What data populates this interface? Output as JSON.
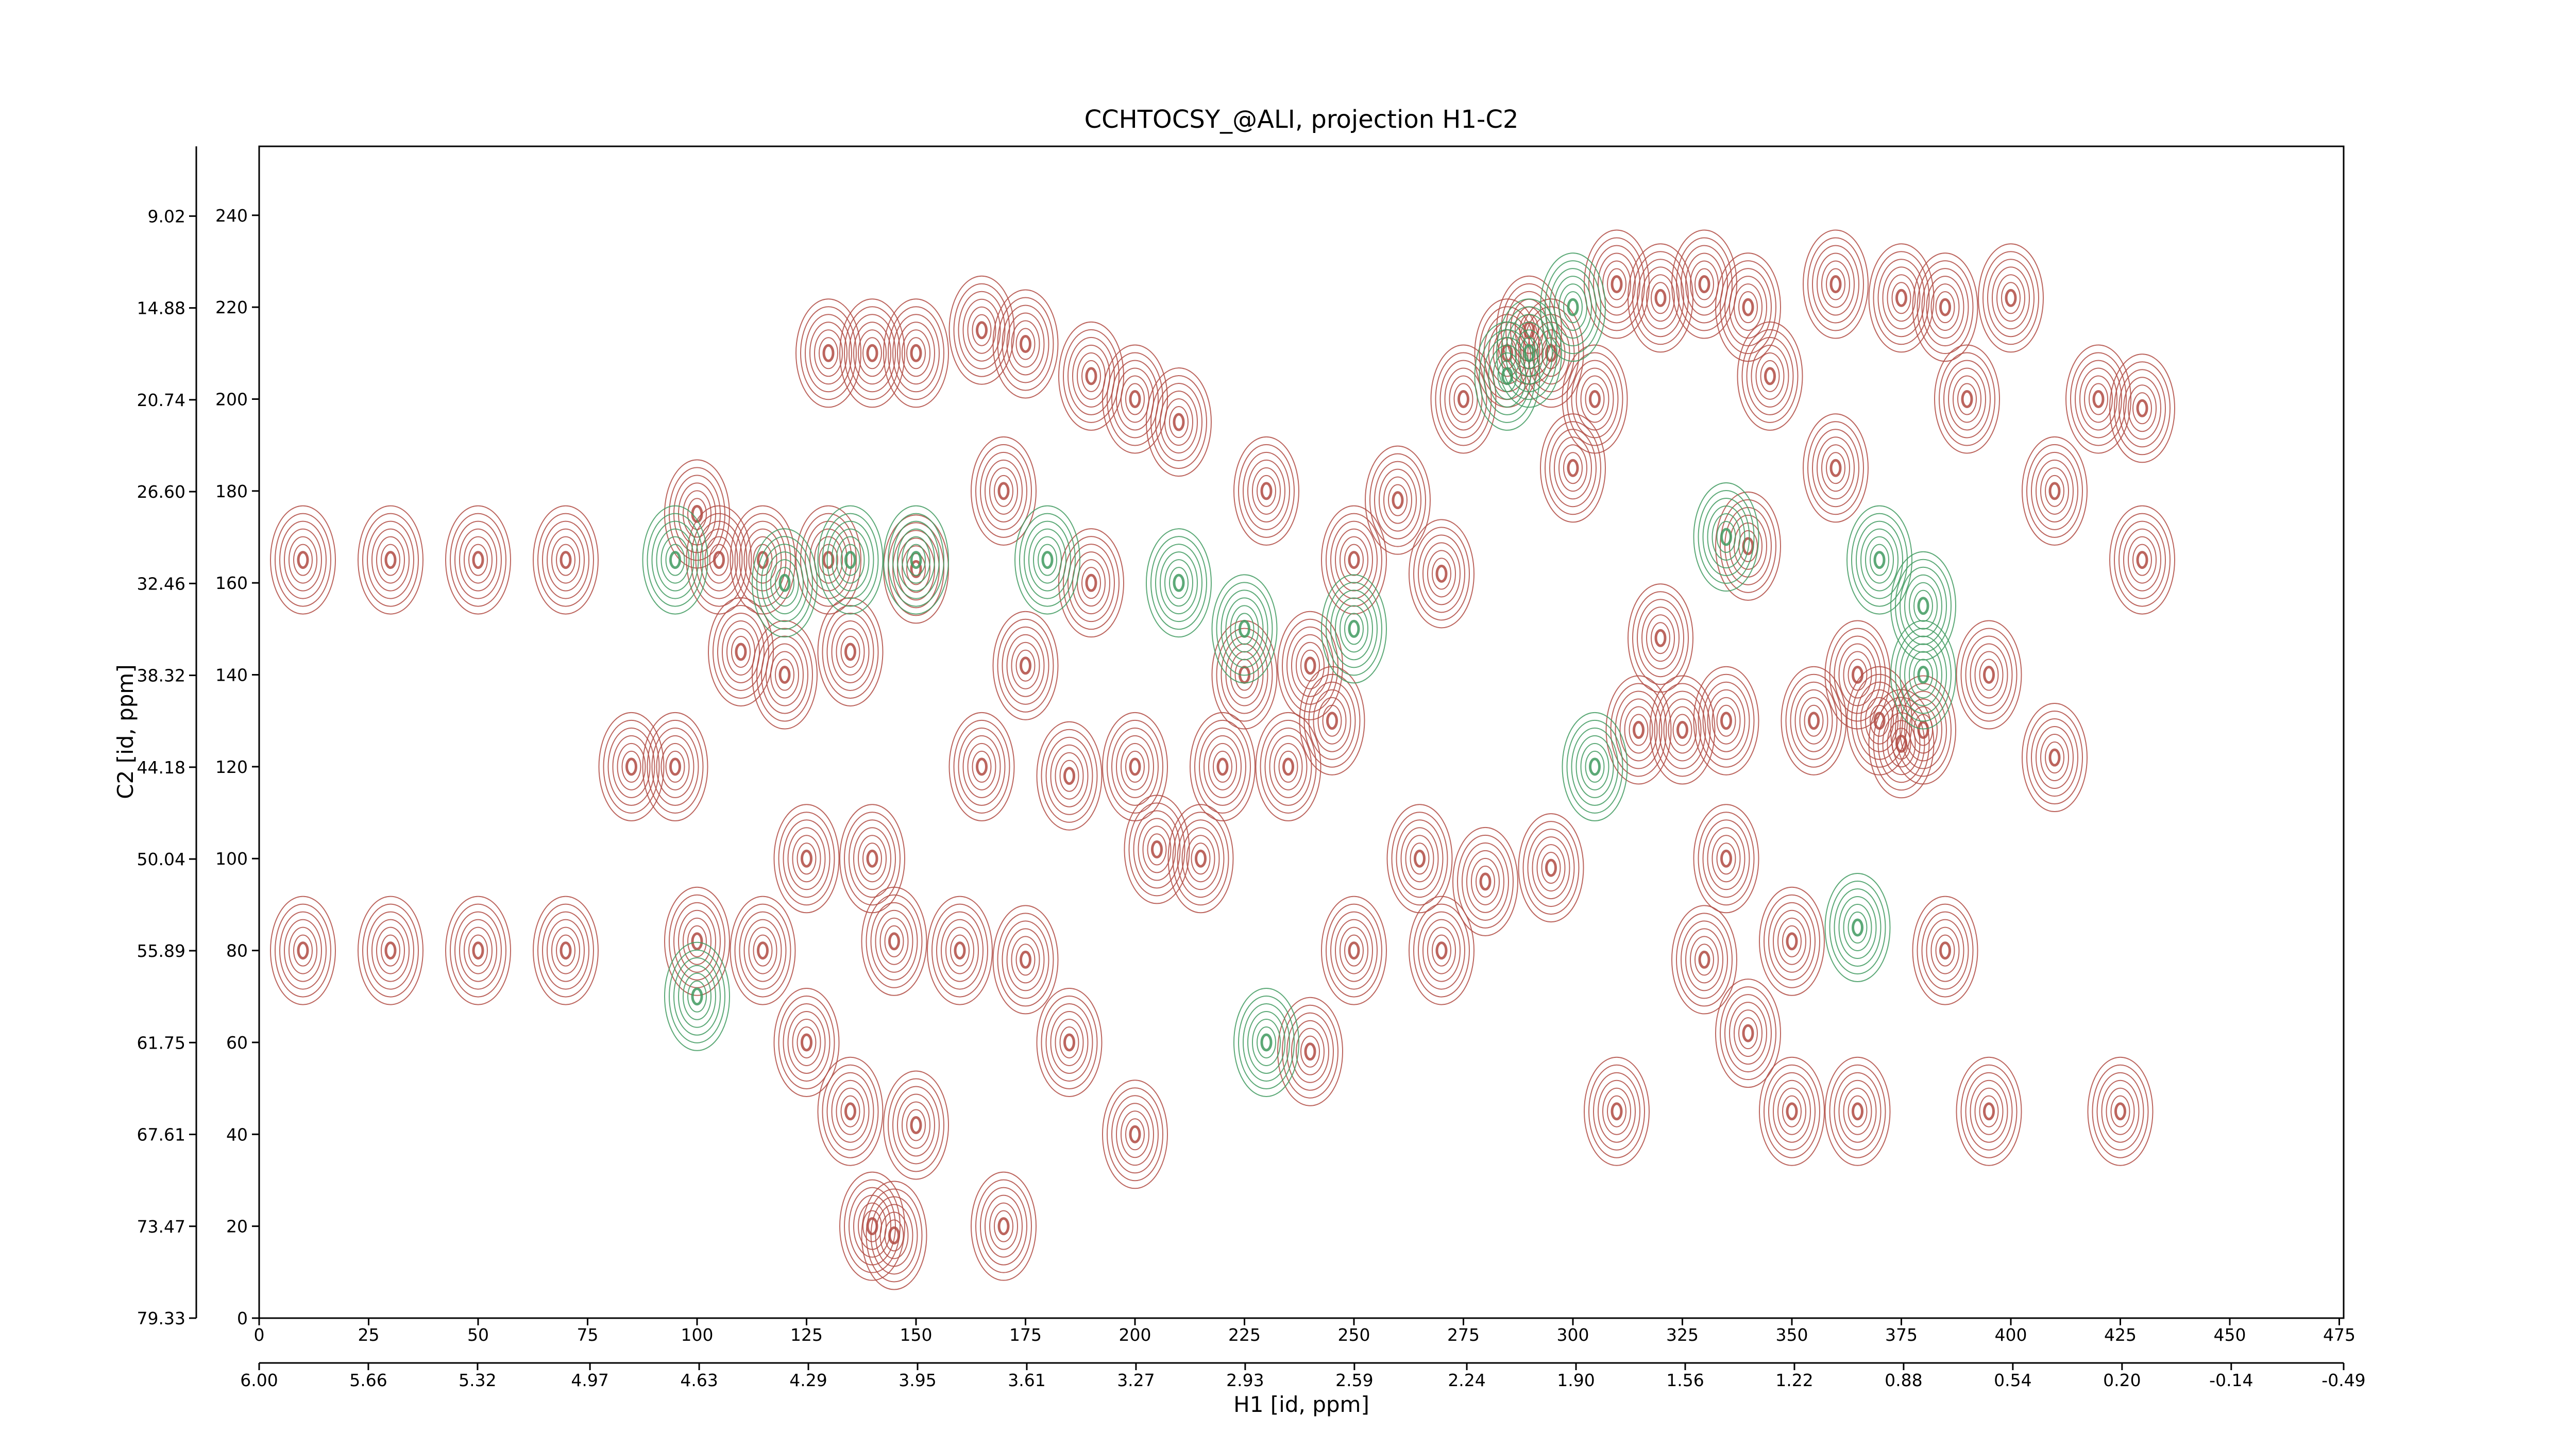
{
  "chart_data": {
    "type": "contour",
    "title": "CCHTOCSY_@ALI, projection H1-C2",
    "xlabel": "H1 [id, ppm]",
    "ylabel": "C2 [id, ppm]",
    "xlim": [
      0,
      476
    ],
    "ylim": [
      0,
      255
    ],
    "xticks": [
      0,
      25,
      50,
      75,
      100,
      125,
      150,
      175,
      200,
      225,
      250,
      275,
      300,
      325,
      350,
      375,
      400,
      425,
      450,
      475
    ],
    "yticks": [
      0,
      20,
      40,
      60,
      80,
      100,
      120,
      140,
      160,
      180,
      200,
      220,
      240
    ],
    "x2lim": [
      6,
      -0.49
    ],
    "x2ticks": [
      {
        "value": 6,
        "label": "6.00"
      },
      5.66,
      5.32,
      4.97,
      4.63,
      4.29,
      3.95,
      3.61,
      3.27,
      2.93,
      2.59,
      2.24,
      {
        "value": 1.9,
        "label": "1.90"
      },
      1.56,
      1.22,
      0.88,
      0.54,
      {
        "value": 0.2,
        "label": "0.20"
      },
      -0.14,
      -0.49
    ],
    "y2lim": [
      79.33,
      4.57
    ],
    "y2ticks": [
      9.02,
      14.88,
      20.74,
      {
        "value": 26.6,
        "label": "26.60"
      },
      32.46,
      38.32,
      44.18,
      50.04,
      55.89,
      61.75,
      67.61,
      73.47,
      79.33
    ],
    "peaks": [
      {
        "color": "#b04a42",
        "x": [
          130,
          140,
          150,
          165,
          175,
          285,
          290,
          295,
          310,
          320,
          330,
          340,
          360,
          375,
          385,
          400,
          305,
          345,
          390,
          190,
          200,
          210,
          275,
          420,
          430,
          100,
          170,
          230,
          260,
          300,
          360,
          410,
          105,
          115,
          130,
          150,
          190,
          250,
          270,
          340,
          430,
          110,
          120,
          135,
          175,
          225,
          240,
          320,
          365,
          395,
          245,
          335,
          355,
          370,
          380,
          85,
          95,
          165,
          185,
          200,
          220,
          235,
          315,
          325,
          375,
          410,
          125,
          140,
          205,
          215,
          265,
          280,
          295,
          335,
          100,
          115,
          145,
          160,
          175,
          250,
          270,
          330,
          350,
          385,
          125,
          185,
          240,
          340,
          135,
          150,
          200,
          310,
          350,
          365,
          395,
          425,
          140,
          145,
          170,
          10,
          30,
          50,
          70,
          10,
          30,
          50,
          70
        ],
        "y": [
          210,
          210,
          210,
          215,
          212,
          210,
          215,
          210,
          225,
          222,
          225,
          220,
          225,
          222,
          220,
          222,
          200,
          205,
          200,
          205,
          200,
          195,
          200,
          200,
          198,
          175,
          180,
          180,
          178,
          185,
          185,
          180,
          165,
          165,
          165,
          163,
          160,
          165,
          162,
          168,
          165,
          145,
          140,
          145,
          142,
          140,
          142,
          148,
          140,
          140,
          130,
          130,
          130,
          130,
          128,
          120,
          120,
          120,
          118,
          120,
          120,
          120,
          128,
          128,
          125,
          122,
          100,
          100,
          102,
          100,
          100,
          95,
          98,
          100,
          82,
          80,
          82,
          80,
          78,
          80,
          80,
          78,
          82,
          80,
          60,
          60,
          58,
          62,
          45,
          42,
          40,
          45,
          45,
          45,
          45,
          45,
          20,
          18,
          20,
          165,
          165,
          165,
          165,
          80,
          80,
          80,
          80
        ]
      },
      {
        "color": "#3f9a5f",
        "x": [
          95,
          120,
          135,
          150,
          180,
          210,
          225,
          285,
          290,
          300,
          370,
          380,
          100,
          230,
          250,
          305,
          335,
          365,
          380
        ],
        "y": [
          165,
          160,
          165,
          165,
          165,
          160,
          150,
          205,
          210,
          220,
          165,
          155,
          70,
          60,
          150,
          120,
          170,
          85,
          140
        ]
      }
    ]
  }
}
